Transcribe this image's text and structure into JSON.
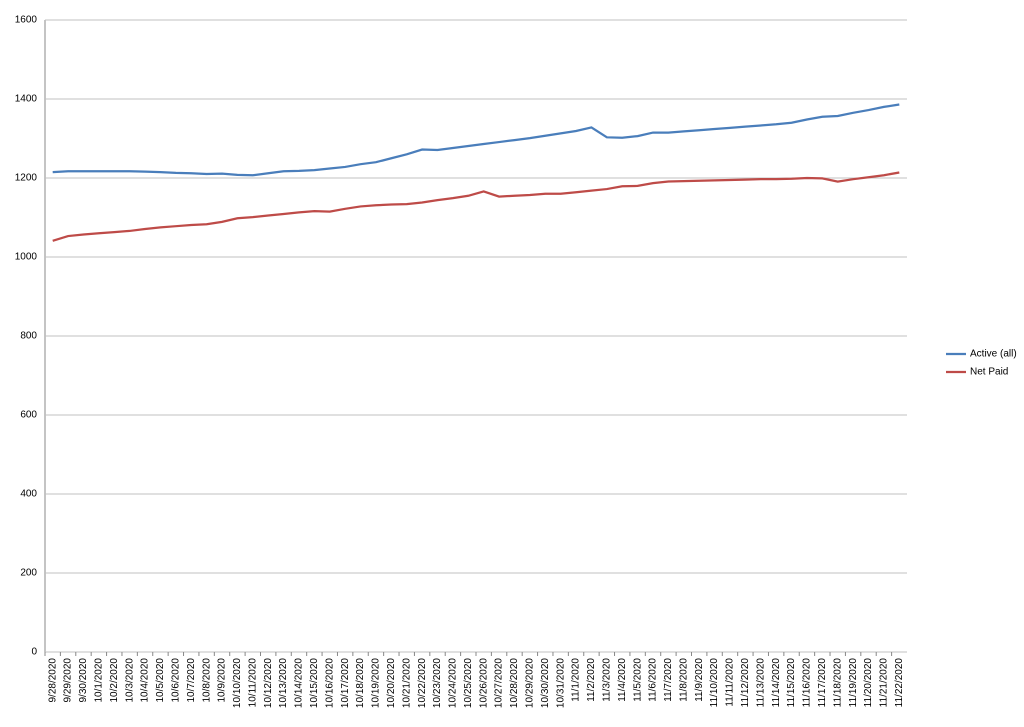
{
  "chart_data": {
    "type": "line",
    "categories": [
      "9/28/2020",
      "9/29/2020",
      "9/30/2020",
      "10/1/2020",
      "10/2/2020",
      "10/3/2020",
      "10/4/2020",
      "10/5/2020",
      "10/6/2020",
      "10/7/2020",
      "10/8/2020",
      "10/9/2020",
      "10/10/2020",
      "10/11/2020",
      "10/12/2020",
      "10/13/2020",
      "10/14/2020",
      "10/15/2020",
      "10/16/2020",
      "10/17/2020",
      "10/18/2020",
      "10/19/2020",
      "10/20/2020",
      "10/21/2020",
      "10/22/2020",
      "10/23/2020",
      "10/24/2020",
      "10/25/2020",
      "10/26/2020",
      "10/27/2020",
      "10/28/2020",
      "10/29/2020",
      "10/30/2020",
      "10/31/2020",
      "11/1/2020",
      "11/2/2020",
      "11/3/2020",
      "11/4/2020",
      "11/5/2020",
      "11/6/2020",
      "11/7/2020",
      "11/8/2020",
      "11/9/2020",
      "11/10/2020",
      "11/11/2020",
      "11/12/2020",
      "11/13/2020",
      "11/14/2020",
      "11/15/2020",
      "11/16/2020",
      "11/17/2020",
      "11/18/2020",
      "11/19/2020",
      "11/20/2020",
      "11/21/2020",
      "11/22/2020"
    ],
    "series": [
      {
        "name": "Active (all)",
        "color": "#4a7ebb",
        "values": [
          1215,
          1217,
          1217,
          1217,
          1217,
          1217,
          1216,
          1215,
          1213,
          1212,
          1210,
          1211,
          1208,
          1207,
          1212,
          1217,
          1218,
          1220,
          1224,
          1228,
          1235,
          1240,
          1250,
          1260,
          1272,
          1271,
          1276,
          1281,
          1286,
          1291,
          1296,
          1301,
          1307,
          1313,
          1319,
          1328,
          1303,
          1302,
          1306,
          1315,
          1315,
          1318,
          1321,
          1324,
          1327,
          1330,
          1333,
          1336,
          1340,
          1348,
          1355,
          1357,
          1365,
          1372,
          1380,
          1386
        ]
      },
      {
        "name": "Net Paid",
        "color": "#be4b48",
        "values": [
          1041,
          1053,
          1057,
          1060,
          1063,
          1066,
          1071,
          1075,
          1078,
          1081,
          1083,
          1089,
          1098,
          1101,
          1105,
          1109,
          1113,
          1116,
          1115,
          1122,
          1128,
          1131,
          1133,
          1134,
          1138,
          1144,
          1149,
          1155,
          1166,
          1153,
          1155,
          1157,
          1160,
          1160,
          1164,
          1168,
          1172,
          1179,
          1180,
          1187,
          1191,
          1192,
          1193,
          1194,
          1195,
          1196,
          1197,
          1197,
          1198,
          1200,
          1199,
          1191,
          1197,
          1202,
          1207,
          1214
        ]
      }
    ],
    "ylim": [
      0,
      1600
    ],
    "yticks": [
      0,
      200,
      400,
      600,
      800,
      1000,
      1200,
      1400,
      1600
    ],
    "grid": true,
    "legend": "right"
  }
}
